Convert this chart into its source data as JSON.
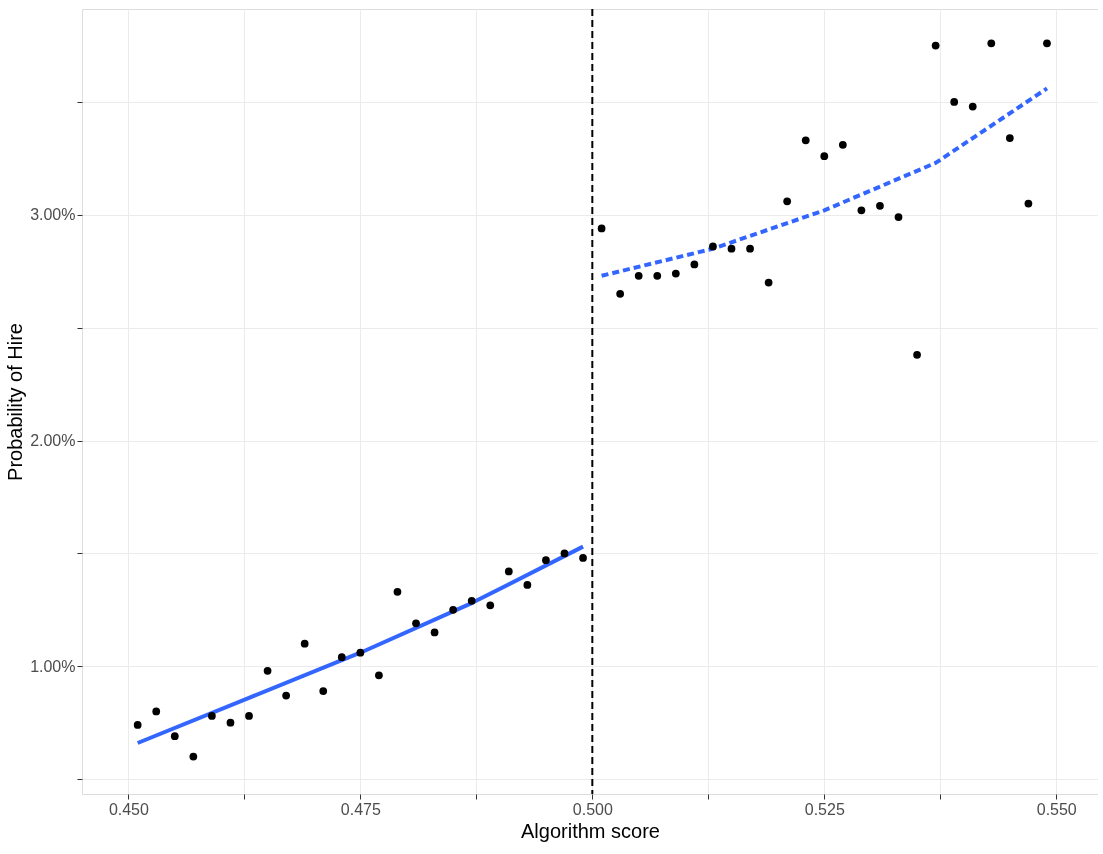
{
  "chart_data": {
    "type": "scatter",
    "xlabel": "Algorithm score",
    "ylabel": "Probability of Hire",
    "xlim": [
      0.445,
      0.5545
    ],
    "ylim": [
      0.434,
      3.912
    ],
    "xticks": [
      {
        "value": 0.45,
        "label": "0.450"
      },
      {
        "value": 0.4625,
        "label": null
      },
      {
        "value": 0.475,
        "label": "0.475"
      },
      {
        "value": 0.4875,
        "label": null
      },
      {
        "value": 0.5,
        "label": "0.500"
      },
      {
        "value": 0.5125,
        "label": null
      },
      {
        "value": 0.525,
        "label": "0.525"
      },
      {
        "value": 0.5375,
        "label": null
      },
      {
        "value": 0.55,
        "label": "0.550"
      }
    ],
    "yticks": [
      {
        "value": 0.5,
        "label": null
      },
      {
        "value": 1,
        "label": "1.00%"
      },
      {
        "value": 1.5,
        "label": null
      },
      {
        "value": 2,
        "label": "2.00%"
      },
      {
        "value": 2.5,
        "label": null
      },
      {
        "value": 3,
        "label": "3.00%"
      },
      {
        "value": 3.5,
        "label": null
      }
    ],
    "grid": true,
    "marker": "circle",
    "series": [
      {
        "color": "#000000",
        "x": [
          0.451,
          0.453,
          0.455,
          0.457,
          0.459,
          0.461,
          0.463,
          0.465,
          0.467,
          0.469,
          0.471,
          0.473,
          0.475,
          0.477,
          0.479,
          0.481,
          0.483,
          0.485,
          0.487,
          0.489,
          0.491,
          0.493,
          0.495,
          0.497,
          0.499,
          0.501,
          0.503,
          0.505,
          0.507,
          0.509,
          0.511,
          0.513,
          0.515,
          0.517,
          0.519,
          0.521,
          0.523,
          0.525,
          0.527,
          0.529,
          0.531,
          0.533,
          0.535,
          0.537,
          0.539,
          0.541,
          0.543,
          0.545,
          0.547,
          0.549
        ],
        "values": [
          0.74,
          0.8,
          0.69,
          0.6,
          0.78,
          0.75,
          0.78,
          0.98,
          0.87,
          1.1,
          0.89,
          1.04,
          1.06,
          0.96,
          1.33,
          1.19,
          1.15,
          1.25,
          1.29,
          1.27,
          1.42,
          1.36,
          1.47,
          1.5,
          1.48,
          2.94,
          2.65,
          2.73,
          2.73,
          2.74,
          2.78,
          2.86,
          2.85,
          2.85,
          2.7,
          3.06,
          3.33,
          3.26,
          3.31,
          3.02,
          3.04,
          2.99,
          2.38,
          3.75,
          3.5,
          3.48,
          3.76,
          3.34,
          3.05,
          3.76
        ]
      },
      {
        "type": "line",
        "marker": "none",
        "color": "#3366ff",
        "line_style": "solid",
        "x": [
          0.451,
          0.463,
          0.475,
          0.487,
          0.499
        ],
        "values": [
          0.66,
          0.86,
          1.06,
          1.28,
          1.53
        ]
      },
      {
        "type": "line",
        "marker": "none",
        "color": "#3366ff",
        "line_style": "dashed",
        "x": [
          0.501,
          0.513,
          0.525,
          0.537,
          0.549
        ],
        "values": [
          2.73,
          2.85,
          3.02,
          3.23,
          3.56
        ]
      }
    ],
    "ref_lines": [
      {
        "axis": "x",
        "value": 0.5,
        "label": null,
        "color": "#000000",
        "line_style": "dashed"
      }
    ]
  }
}
